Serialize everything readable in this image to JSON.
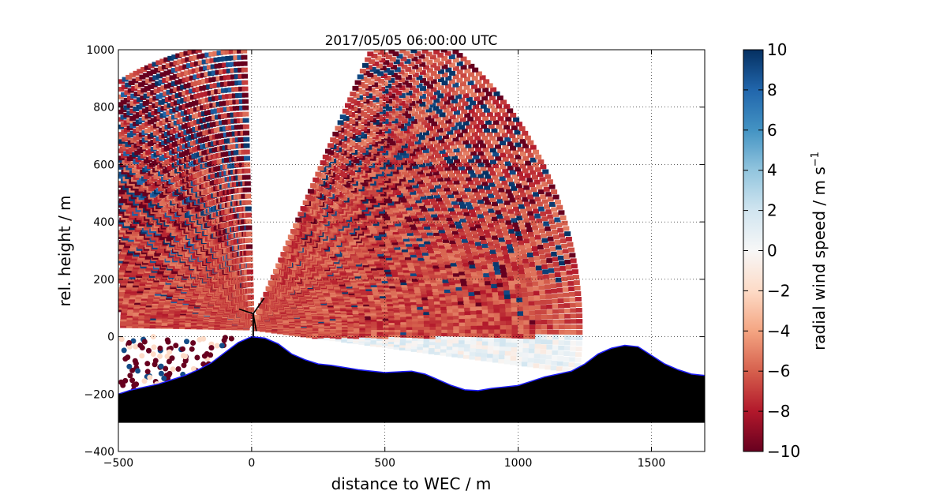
{
  "chart_data": {
    "type": "scatter",
    "title": "2017/05/05 06:00:00 UTC",
    "xlabel": "distance to WEC / m",
    "ylabel": "rel. height / m",
    "xlim": [
      -500,
      1700
    ],
    "ylim": [
      -400,
      1000
    ],
    "xticks": [
      -500,
      0,
      500,
      1000,
      1500
    ],
    "yticks": [
      -400,
      -200,
      0,
      200,
      400,
      600,
      800,
      1000
    ],
    "grid": true,
    "colormap": "RdBu",
    "colorbar": {
      "label": "radial wind speed / m s",
      "label_superscript": "−1",
      "range": [
        -10,
        10
      ],
      "ticks": [
        -10,
        -8,
        -6,
        -4,
        -2,
        0,
        2,
        4,
        6,
        8,
        10
      ],
      "position": "right"
    },
    "scan": {
      "origin": [
        0,
        30
      ],
      "max_range_m": 1240,
      "elevation_deg": [
        -7,
        65
      ],
      "typical_speed": -6.5
    },
    "terrain": {
      "x": [
        -500,
        -450,
        -400,
        -350,
        -300,
        -250,
        -200,
        -150,
        -100,
        -50,
        0,
        50,
        100,
        150,
        200,
        250,
        300,
        400,
        500,
        600,
        650,
        700,
        750,
        800,
        850,
        900,
        1000,
        1050,
        1100,
        1200,
        1250,
        1300,
        1350,
        1400,
        1450,
        1500,
        1550,
        1600,
        1650,
        1700
      ],
      "y": [
        -200,
        -185,
        -175,
        -165,
        -150,
        -135,
        -115,
        -90,
        -55,
        -20,
        0,
        -5,
        -25,
        -60,
        -80,
        -95,
        -100,
        -115,
        -125,
        -120,
        -130,
        -150,
        -170,
        -185,
        -188,
        -180,
        -170,
        -155,
        -140,
        -120,
        -95,
        -60,
        -40,
        -30,
        -35,
        -65,
        -95,
        -115,
        -130,
        -135
      ],
      "floor": -300,
      "fill_color": "#000000",
      "edge_color": "#1f1fff"
    },
    "turbine": {
      "x": 0,
      "hub_height": 80,
      "color": "#000000"
    }
  }
}
